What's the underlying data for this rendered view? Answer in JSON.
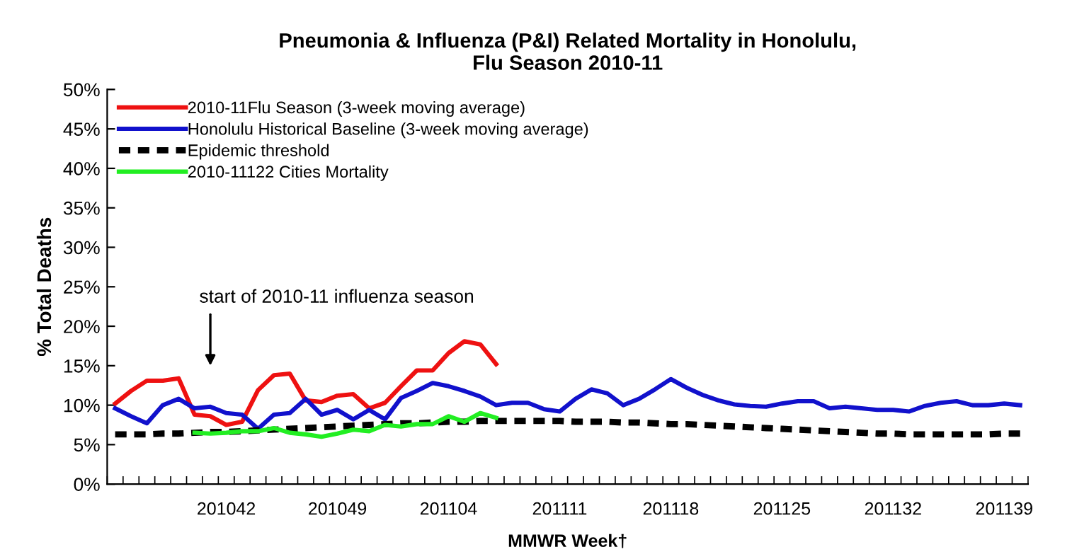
{
  "chart_data": {
    "type": "line",
    "title": "Pneumonia & Influenza (P&I) Related Mortality in Honolulu,\nFlu Season 2010-11",
    "xlabel": "MMWR Week†",
    "ylabel": "% Total Deaths",
    "categories": [
      null,
      null,
      null,
      null,
      null,
      null,
      null,
      "201042",
      null,
      null,
      null,
      null,
      null,
      null,
      "201049",
      null,
      null,
      null,
      null,
      null,
      null,
      "201104",
      null,
      null,
      null,
      null,
      null,
      null,
      "201111",
      null,
      null,
      null,
      null,
      null,
      null,
      "201118",
      null,
      null,
      null,
      null,
      null,
      null,
      "201125",
      null,
      null,
      null,
      null,
      null,
      null,
      "201132",
      null,
      null,
      null,
      null,
      null,
      null,
      "201139",
      null
    ],
    "series": [
      {
        "name": "2010-11Flu Season (3-week moving average)",
        "color": "#ee1111",
        "values": [
          10.2,
          11.8,
          13.1,
          13.1,
          13.4,
          8.8,
          8.6,
          7.5,
          7.9,
          11.9,
          13.8,
          14.0,
          10.6,
          10.4,
          11.2,
          11.4,
          9.6,
          10.3,
          12.4,
          14.4,
          14.4,
          16.6,
          18.1,
          17.7,
          15.2,
          null,
          null,
          null,
          null,
          null,
          null,
          null,
          null,
          null,
          null,
          null,
          null,
          null,
          null,
          null,
          null,
          null,
          null,
          null,
          null,
          null,
          null,
          null,
          null,
          null,
          null,
          null,
          null,
          null,
          null,
          null,
          null,
          null
        ]
      },
      {
        "name": "Honolulu Historical Baseline (3-week moving average)",
        "color": "#1111cc",
        "values": [
          9.6,
          8.6,
          7.7,
          10.0,
          10.8,
          9.6,
          9.8,
          9.0,
          8.8,
          7.0,
          8.8,
          9.0,
          10.8,
          8.8,
          9.4,
          8.2,
          9.4,
          8.2,
          10.9,
          11.8,
          12.8,
          12.4,
          11.8,
          11.1,
          10.0,
          10.3,
          10.3,
          9.5,
          9.2,
          10.8,
          12.0,
          11.5,
          10.0,
          10.8,
          12.0,
          13.3,
          12.2,
          11.3,
          10.6,
          10.1,
          9.9,
          9.8,
          10.2,
          10.5,
          10.5,
          9.6,
          9.8,
          9.6,
          9.4,
          9.4,
          9.2,
          9.9,
          10.3,
          10.5,
          10.0,
          10.0,
          10.2,
          10.0
        ]
      },
      {
        "name": "Epidemic threshold",
        "color": "#000000",
        "line_style": "dashed",
        "values": [
          6.3,
          6.3,
          6.3,
          6.4,
          6.4,
          6.5,
          6.6,
          6.6,
          6.7,
          6.8,
          6.9,
          7.0,
          7.1,
          7.2,
          7.3,
          7.4,
          7.5,
          7.6,
          7.7,
          7.7,
          7.8,
          7.9,
          7.9,
          8.0,
          8.0,
          8.0,
          8.0,
          8.0,
          8.0,
          7.9,
          7.9,
          7.9,
          7.8,
          7.8,
          7.7,
          7.6,
          7.6,
          7.5,
          7.4,
          7.3,
          7.2,
          7.1,
          7.0,
          6.9,
          6.8,
          6.7,
          6.6,
          6.5,
          6.4,
          6.4,
          6.3,
          6.3,
          6.3,
          6.3,
          6.3,
          6.3,
          6.4,
          6.4
        ]
      },
      {
        "name": "2010-11122 Cities Mortality",
        "color": "#22ee22",
        "values": [
          null,
          null,
          null,
          null,
          null,
          6.5,
          6.4,
          6.5,
          6.7,
          6.7,
          7.1,
          6.5,
          6.3,
          6.0,
          6.4,
          6.9,
          6.7,
          7.5,
          7.3,
          7.6,
          7.6,
          8.6,
          7.9,
          9.0,
          8.4,
          null,
          null,
          null,
          null,
          null,
          null,
          null,
          null,
          null,
          null,
          null,
          null,
          null,
          null,
          null,
          null,
          null,
          null,
          null,
          null,
          null,
          null,
          null,
          null,
          null,
          null,
          null,
          null,
          null,
          null,
          null,
          null,
          null
        ]
      }
    ],
    "ylim": [
      0,
      50
    ],
    "yticks": [
      {
        "value": 0,
        "label": "0%"
      },
      {
        "value": 5,
        "label": "5%"
      },
      {
        "value": 10,
        "label": "10%"
      },
      {
        "value": 15,
        "label": "15%"
      },
      {
        "value": 20,
        "label": "20%"
      },
      {
        "value": 25,
        "label": "25%"
      },
      {
        "value": 30,
        "label": "30%"
      },
      {
        "value": 35,
        "label": "35%"
      },
      {
        "value": 40,
        "label": "40%"
      },
      {
        "value": 45,
        "label": "45%"
      },
      {
        "value": 50,
        "label": "50%"
      }
    ],
    "annotations": [
      "start of 2010-11 influenza season"
    ],
    "legend": "top left",
    "grid": false,
    "marker": "none"
  }
}
